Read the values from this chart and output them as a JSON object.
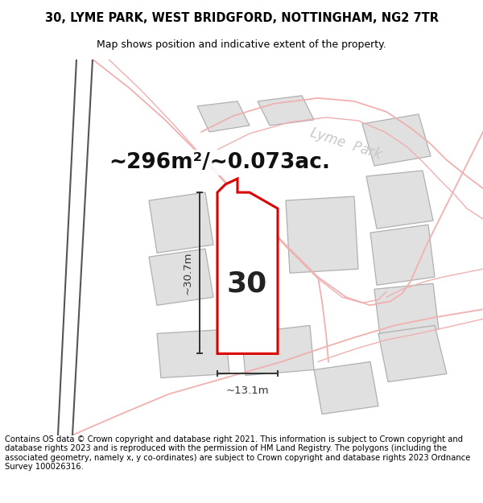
{
  "title_line1": "30, LYME PARK, WEST BRIDGFORD, NOTTINGHAM, NG2 7TR",
  "title_line2": "Map shows position and indicative extent of the property.",
  "footer_text": "Contains OS data © Crown copyright and database right 2021. This information is subject to Crown copyright and database rights 2023 and is reproduced with the permission of HM Land Registry. The polygons (including the associated geometry, namely x, y co-ordinates) are subject to Crown copyright and database rights 2023 Ordnance Survey 100026316.",
  "area_label": "~296m²/~0.073ac.",
  "width_label": "~13.1m",
  "height_label": "~30.7m",
  "number_label": "30",
  "bg_color": "#ffffff",
  "highlight_fill": "#ffffff",
  "highlight_stroke": "#dd0000",
  "neighbor_fill": "#e0e0e0",
  "neighbor_stroke": "#b0b0b0",
  "road_pink": "#f0b0b0",
  "road_dark": "#555555",
  "dim_color": "#333333",
  "text_color": "#111111",
  "watermark_color": "#c8c8c8",
  "title_fontsize": 10.5,
  "subtitle_fontsize": 9,
  "footer_fontsize": 7.2,
  "area_fontsize": 19,
  "number_fontsize": 26,
  "dim_fontsize": 9.5
}
